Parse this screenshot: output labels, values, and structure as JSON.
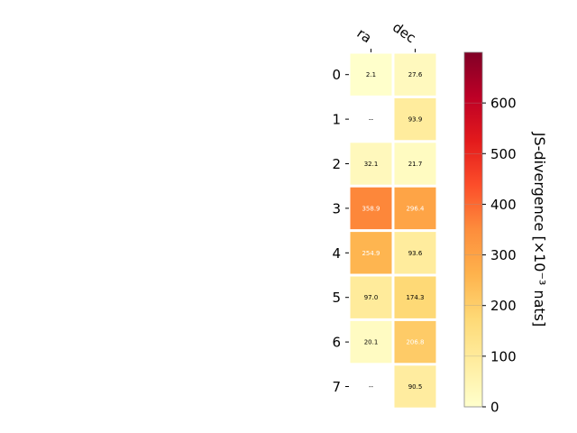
{
  "chart_data": {
    "type": "heatmap",
    "columns": [
      "ra",
      "dec"
    ],
    "rows": [
      "0",
      "1",
      "2",
      "3",
      "4",
      "5",
      "6",
      "7"
    ],
    "values": [
      [
        2.1,
        27.6
      ],
      [
        null,
        93.9
      ],
      [
        32.1,
        21.7
      ],
      [
        358.9,
        296.4
      ],
      [
        254.9,
        93.6
      ],
      [
        97.0,
        174.3
      ],
      [
        20.1,
        206.8
      ],
      [
        null,
        90.5
      ]
    ],
    "cell_labels": [
      [
        "2.1",
        "27.6"
      ],
      [
        "--",
        "93.9"
      ],
      [
        "32.1",
        "21.7"
      ],
      [
        "358.9",
        "296.4"
      ],
      [
        "254.9",
        "93.6"
      ],
      [
        "97.0",
        "174.3"
      ],
      [
        "20.1",
        "206.8"
      ],
      [
        "--",
        "90.5"
      ]
    ],
    "colorbar": {
      "label": "JS-divergence [×10⁻³ nats]",
      "range": [
        0,
        700
      ],
      "ticks": [
        "0",
        "100",
        "200",
        "300",
        "400",
        "500",
        "600"
      ],
      "colormap": "YlOrRd"
    }
  }
}
